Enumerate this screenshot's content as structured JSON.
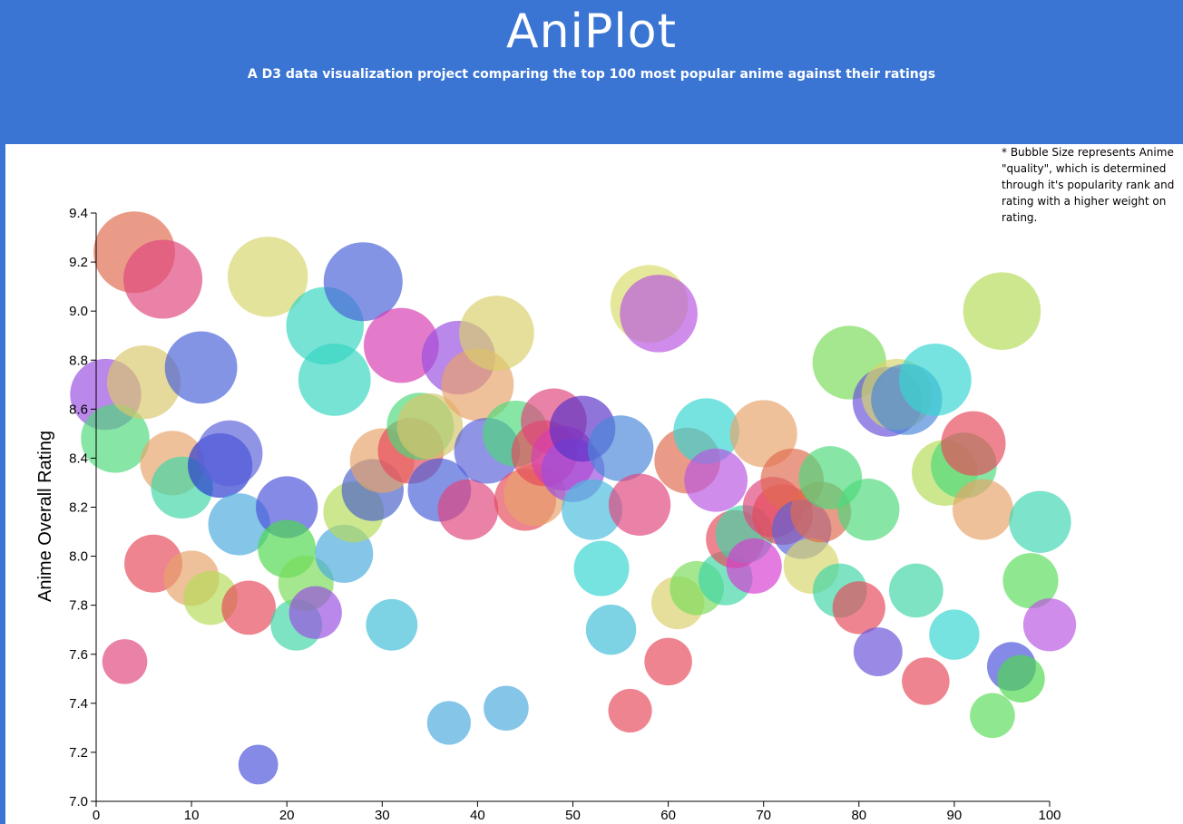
{
  "header": {
    "title": "AniPlot",
    "subtitle": "A D3 data visualization project comparing the top 100 most popular anime against their ratings"
  },
  "note": "* Bubble Size represents Anime \"quality\", which is determined through it's popularity rank and rating with a higher weight on rating.",
  "colors": {
    "header_bg": "#3a75d4",
    "panel_bg": "#ffffff",
    "palette": [
      "#e06c4f",
      "#e0467e",
      "#d9dd6b",
      "#4a62d8",
      "#36d6d1",
      "#d53cb1",
      "#5a62d8",
      "#9a4ee0",
      "#4ed87b",
      "#e8a36a",
      "#7adc5a",
      "#4aa9dd",
      "#e64a5a",
      "#b855e0",
      "#3fd6b1",
      "#d6d66b"
    ]
  },
  "chart_data": {
    "type": "scatter",
    "title": "",
    "xlabel": "",
    "ylabel": "Anime Overall Rating",
    "xlim": [
      0,
      100
    ],
    "ylim": [
      7.0,
      9.4
    ],
    "xticks": [
      "0",
      "10",
      "20",
      "30",
      "40",
      "50",
      "60",
      "70",
      "80",
      "90",
      "100"
    ],
    "yticks": [
      "7.0",
      "7.2",
      "7.4",
      "7.6",
      "7.8",
      "8.0",
      "8.2",
      "8.4",
      "8.6",
      "8.8",
      "9.0",
      "9.2",
      "9.4"
    ],
    "grid": false,
    "size_encoding": "quality",
    "points": [
      {
        "x": 1,
        "y": 8.66,
        "size": 0.7,
        "color": "#9a4ee0"
      },
      {
        "x": 2,
        "y": 8.48,
        "size": 0.66,
        "color": "#4ed87b"
      },
      {
        "x": 3,
        "y": 7.57,
        "size": 0.3,
        "color": "#e0467e"
      },
      {
        "x": 4,
        "y": 9.24,
        "size": 0.86,
        "color": "#e06c4f"
      },
      {
        "x": 5,
        "y": 8.71,
        "size": 0.74,
        "color": "#d9c86b"
      },
      {
        "x": 6,
        "y": 7.97,
        "size": 0.5,
        "color": "#e64a5a"
      },
      {
        "x": 7,
        "y": 9.13,
        "size": 0.82,
        "color": "#e0467e"
      },
      {
        "x": 8,
        "y": 8.38,
        "size": 0.6,
        "color": "#e8a36a"
      },
      {
        "x": 9,
        "y": 8.28,
        "size": 0.56,
        "color": "#3fd6a6"
      },
      {
        "x": 10,
        "y": 7.91,
        "size": 0.46,
        "color": "#e8a36a"
      },
      {
        "x": 11,
        "y": 8.77,
        "size": 0.72,
        "color": "#4a62d8"
      },
      {
        "x": 12,
        "y": 7.83,
        "size": 0.44,
        "color": "#b5dc5a"
      },
      {
        "x": 13,
        "y": 8.37,
        "size": 0.6,
        "color": "#2a3ad0"
      },
      {
        "x": 14,
        "y": 8.42,
        "size": 0.62,
        "color": "#5a62d8"
      },
      {
        "x": 15,
        "y": 8.13,
        "size": 0.56,
        "color": "#4aa9dd"
      },
      {
        "x": 16,
        "y": 7.79,
        "size": 0.44,
        "color": "#e64a5a"
      },
      {
        "x": 17,
        "y": 7.15,
        "size": 0.22,
        "color": "#4a52d8"
      },
      {
        "x": 18,
        "y": 9.14,
        "size": 0.84,
        "color": "#d6d66b"
      },
      {
        "x": 20,
        "y": 8.2,
        "size": 0.56,
        "color": "#4a52d8"
      },
      {
        "x": 20,
        "y": 8.03,
        "size": 0.5,
        "color": "#4ed84e"
      },
      {
        "x": 21,
        "y": 7.72,
        "size": 0.4,
        "color": "#3fd6a6"
      },
      {
        "x": 22,
        "y": 7.89,
        "size": 0.46,
        "color": "#7adc5a"
      },
      {
        "x": 23,
        "y": 7.77,
        "size": 0.42,
        "color": "#9a4ee0"
      },
      {
        "x": 24,
        "y": 8.94,
        "size": 0.8,
        "color": "#36d6c1"
      },
      {
        "x": 25,
        "y": 8.72,
        "size": 0.72,
        "color": "#36d6c1"
      },
      {
        "x": 26,
        "y": 8.01,
        "size": 0.5,
        "color": "#4aa9dd"
      },
      {
        "x": 27,
        "y": 8.18,
        "size": 0.54,
        "color": "#b5dc5a"
      },
      {
        "x": 28,
        "y": 9.12,
        "size": 0.82,
        "color": "#4a62d8"
      },
      {
        "x": 29,
        "y": 8.27,
        "size": 0.56,
        "color": "#4a62c8"
      },
      {
        "x": 30,
        "y": 8.39,
        "size": 0.6,
        "color": "#e8a36a"
      },
      {
        "x": 31,
        "y": 7.72,
        "size": 0.4,
        "color": "#3fbcd6"
      },
      {
        "x": 32,
        "y": 8.86,
        "size": 0.76,
        "color": "#d53cb1"
      },
      {
        "x": 33,
        "y": 8.43,
        "size": 0.62,
        "color": "#e64a5a"
      },
      {
        "x": 34,
        "y": 8.53,
        "size": 0.64,
        "color": "#4ed87b"
      },
      {
        "x": 35,
        "y": 8.53,
        "size": 0.62,
        "color": "#d6c66b"
      },
      {
        "x": 36,
        "y": 8.27,
        "size": 0.58,
        "color": "#4a62d8"
      },
      {
        "x": 37,
        "y": 7.32,
        "size": 0.28,
        "color": "#4aa9dd"
      },
      {
        "x": 38,
        "y": 8.81,
        "size": 0.74,
        "color": "#9a4ee0"
      },
      {
        "x": 39,
        "y": 8.19,
        "size": 0.54,
        "color": "#e0467e"
      },
      {
        "x": 40,
        "y": 8.7,
        "size": 0.72,
        "color": "#e8a36a"
      },
      {
        "x": 41,
        "y": 8.43,
        "size": 0.62,
        "color": "#5a62d8"
      },
      {
        "x": 42,
        "y": 8.91,
        "size": 0.76,
        "color": "#d9d06b"
      },
      {
        "x": 43,
        "y": 7.38,
        "size": 0.3,
        "color": "#4aa9dd"
      },
      {
        "x": 44,
        "y": 8.5,
        "size": 0.62,
        "color": "#4ed87b"
      },
      {
        "x": 45,
        "y": 8.23,
        "size": 0.56,
        "color": "#e64a5a"
      },
      {
        "x": 46,
        "y": 8.25,
        "size": 0.56,
        "color": "#e8a36a"
      },
      {
        "x": 47,
        "y": 8.42,
        "size": 0.62,
        "color": "#e64a5a"
      },
      {
        "x": 48,
        "y": 8.55,
        "size": 0.62,
        "color": "#e0467e"
      },
      {
        "x": 49,
        "y": 8.4,
        "size": 0.6,
        "color": "#d53cb1"
      },
      {
        "x": 50,
        "y": 8.35,
        "size": 0.58,
        "color": "#9a4ee0"
      },
      {
        "x": 51,
        "y": 8.52,
        "size": 0.62,
        "color": "#5a32c8"
      },
      {
        "x": 52,
        "y": 8.19,
        "size": 0.54,
        "color": "#4abcdd"
      },
      {
        "x": 53,
        "y": 7.95,
        "size": 0.46,
        "color": "#36d6d1"
      },
      {
        "x": 54,
        "y": 7.7,
        "size": 0.38,
        "color": "#3fbcd6"
      },
      {
        "x": 55,
        "y": 8.44,
        "size": 0.62,
        "color": "#4a88d8"
      },
      {
        "x": 56,
        "y": 7.37,
        "size": 0.28,
        "color": "#e64a5a"
      },
      {
        "x": 57,
        "y": 8.21,
        "size": 0.56,
        "color": "#e0467e"
      },
      {
        "x": 58,
        "y": 9.03,
        "size": 0.8,
        "color": "#d9dd6b"
      },
      {
        "x": 59,
        "y": 8.99,
        "size": 0.8,
        "color": "#b855e0"
      },
      {
        "x": 60,
        "y": 7.57,
        "size": 0.34,
        "color": "#e64a5a"
      },
      {
        "x": 61,
        "y": 7.81,
        "size": 0.42,
        "color": "#d9d06b"
      },
      {
        "x": 62,
        "y": 8.39,
        "size": 0.62,
        "color": "#e06c4f"
      },
      {
        "x": 63,
        "y": 7.87,
        "size": 0.44,
        "color": "#7adc5a"
      },
      {
        "x": 64,
        "y": 8.51,
        "size": 0.62,
        "color": "#36d6d1"
      },
      {
        "x": 65,
        "y": 8.31,
        "size": 0.58,
        "color": "#b855e0"
      },
      {
        "x": 66,
        "y": 7.91,
        "size": 0.44,
        "color": "#3fd6a6"
      },
      {
        "x": 67,
        "y": 8.07,
        "size": 0.5,
        "color": "#e64a5a"
      },
      {
        "x": 68,
        "y": 8.09,
        "size": 0.5,
        "color": "#3fd6a6"
      },
      {
        "x": 69,
        "y": 7.96,
        "size": 0.46,
        "color": "#d53cd1"
      },
      {
        "x": 70,
        "y": 8.5,
        "size": 0.64,
        "color": "#e8a36a"
      },
      {
        "x": 71,
        "y": 8.2,
        "size": 0.54,
        "color": "#e0467e"
      },
      {
        "x": 72,
        "y": 8.17,
        "size": 0.54,
        "color": "#e64a5a"
      },
      {
        "x": 73,
        "y": 8.31,
        "size": 0.58,
        "color": "#e06c4f"
      },
      {
        "x": 74,
        "y": 8.11,
        "size": 0.52,
        "color": "#5a62d8"
      },
      {
        "x": 75,
        "y": 7.96,
        "size": 0.46,
        "color": "#d6d66b"
      },
      {
        "x": 76,
        "y": 8.18,
        "size": 0.54,
        "color": "#e06c4f"
      },
      {
        "x": 77,
        "y": 8.32,
        "size": 0.58,
        "color": "#4ed87b"
      },
      {
        "x": 78,
        "y": 7.86,
        "size": 0.44,
        "color": "#3fd6a6"
      },
      {
        "x": 79,
        "y": 8.79,
        "size": 0.74,
        "color": "#7adc5a"
      },
      {
        "x": 80,
        "y": 7.79,
        "size": 0.42,
        "color": "#e64a5a"
      },
      {
        "x": 81,
        "y": 8.19,
        "size": 0.56,
        "color": "#4ed87b"
      },
      {
        "x": 82,
        "y": 7.61,
        "size": 0.36,
        "color": "#6a52d8"
      },
      {
        "x": 83,
        "y": 8.63,
        "size": 0.68,
        "color": "#6a52d8"
      },
      {
        "x": 84,
        "y": 8.66,
        "size": 0.7,
        "color": "#d6d66b"
      },
      {
        "x": 85,
        "y": 8.64,
        "size": 0.7,
        "color": "#4a88d8"
      },
      {
        "x": 86,
        "y": 7.86,
        "size": 0.44,
        "color": "#3fd6a6"
      },
      {
        "x": 87,
        "y": 7.49,
        "size": 0.34,
        "color": "#e64a5a"
      },
      {
        "x": 88,
        "y": 8.72,
        "size": 0.72,
        "color": "#36d6d1"
      },
      {
        "x": 89,
        "y": 8.34,
        "size": 0.62,
        "color": "#b5dc5a"
      },
      {
        "x": 90,
        "y": 7.68,
        "size": 0.38,
        "color": "#36d6d1"
      },
      {
        "x": 91,
        "y": 8.37,
        "size": 0.62,
        "color": "#4ed87b"
      },
      {
        "x": 92,
        "y": 8.46,
        "size": 0.6,
        "color": "#e64a5a"
      },
      {
        "x": 93,
        "y": 8.19,
        "size": 0.54,
        "color": "#e8a36a"
      },
      {
        "x": 94,
        "y": 7.35,
        "size": 0.3,
        "color": "#5adc5a"
      },
      {
        "x": 95,
        "y": 9.0,
        "size": 0.8,
        "color": "#b5dc5a"
      },
      {
        "x": 96,
        "y": 7.55,
        "size": 0.36,
        "color": "#4a52d8"
      },
      {
        "x": 97,
        "y": 7.5,
        "size": 0.34,
        "color": "#4ed84e"
      },
      {
        "x": 98,
        "y": 7.9,
        "size": 0.46,
        "color": "#5adc5a"
      },
      {
        "x": 99,
        "y": 8.14,
        "size": 0.56,
        "color": "#3fd6b1"
      },
      {
        "x": 100,
        "y": 7.72,
        "size": 0.42,
        "color": "#b855e0"
      }
    ]
  }
}
